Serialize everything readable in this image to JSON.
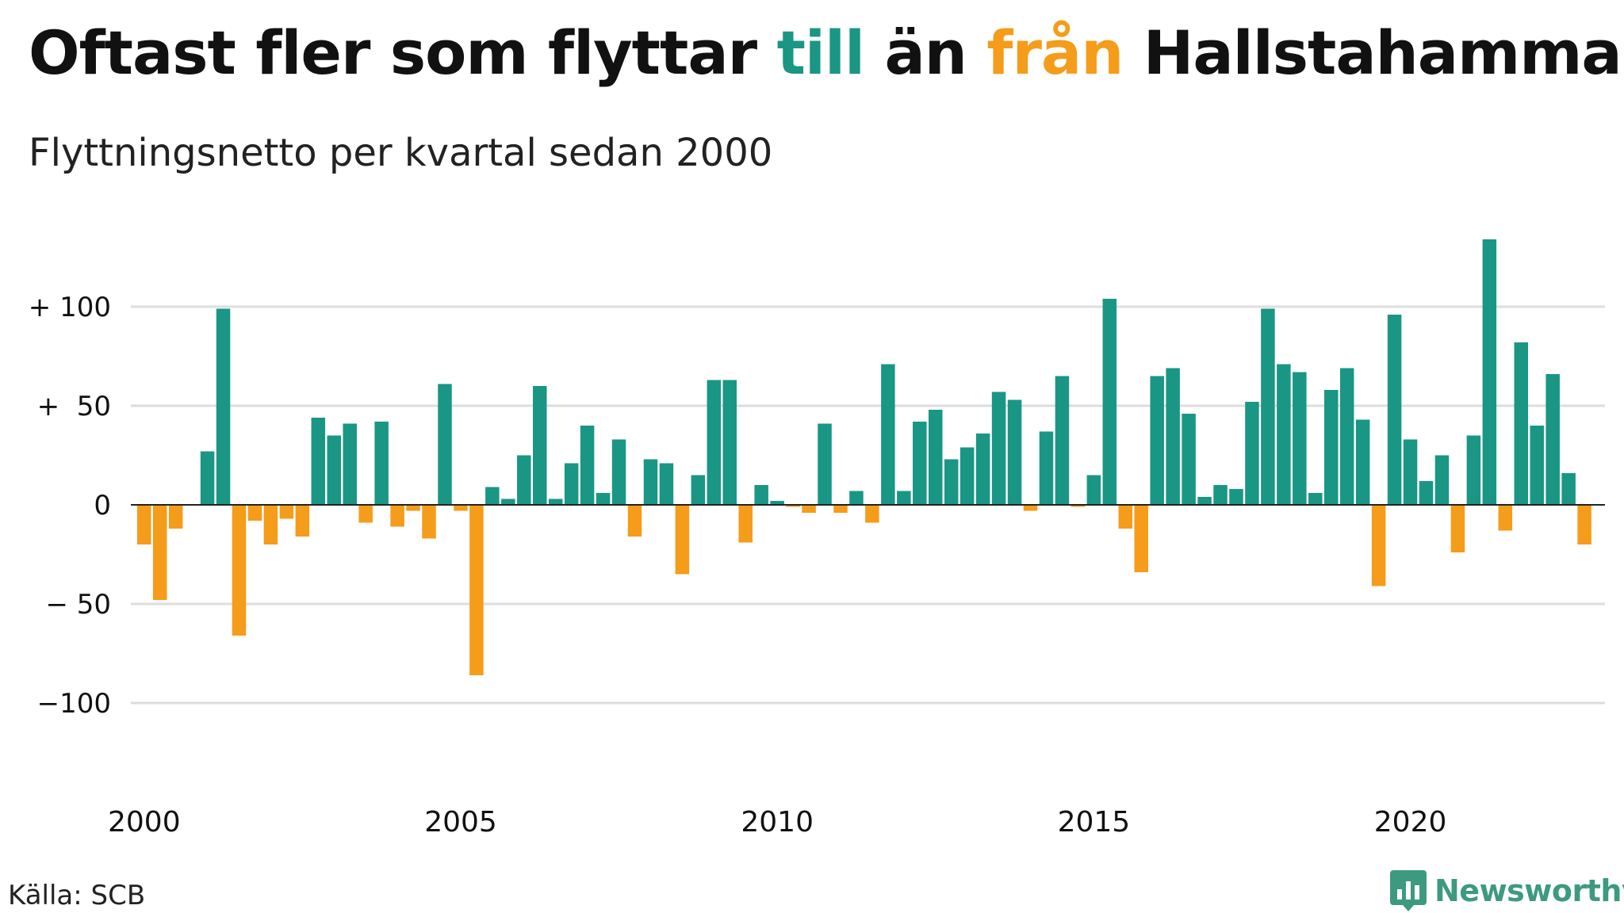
{
  "title": {
    "part1": "Oftast fler som flyttar",
    "word_till": "till",
    "part2": "än",
    "word_fran": "från",
    "part3": "Hallstahammar"
  },
  "subtitle": "Flyttningsnetto per kvartal sedan 2000",
  "source": "Källa: SCB",
  "logo": {
    "text": "Newsworthy",
    "icon": "bar-chart-badge-icon"
  },
  "colors": {
    "positive": "#1a9685",
    "negative": "#f59c1a",
    "grid": "#dddddd",
    "zero_line": "#222222",
    "text": "#111111"
  },
  "chart_data": {
    "type": "bar",
    "xlabel": "",
    "ylabel": "",
    "ylim": [
      -150,
      135
    ],
    "grid": true,
    "y_ticks": [
      {
        "value": 100,
        "label": "+ 100"
      },
      {
        "value": 50,
        "label": "+  50"
      },
      {
        "value": 0,
        "label": "0"
      },
      {
        "value": -50,
        "label": "− 50"
      },
      {
        "value": -100,
        "label": "−100"
      }
    ],
    "x_ticks": [
      {
        "year": 2000,
        "label": "2000"
      },
      {
        "year": 2005,
        "label": "2005"
      },
      {
        "year": 2010,
        "label": "2010"
      },
      {
        "year": 2015,
        "label": "2015"
      },
      {
        "year": 2020,
        "label": "2020"
      }
    ],
    "start_year": 2000,
    "quarters_per_year": 4,
    "values": [
      -20,
      -48,
      -12,
      0,
      27,
      99,
      -66,
      -8,
      -20,
      -7,
      -16,
      44,
      35,
      41,
      -9,
      42,
      -11,
      -3,
      -17,
      61,
      -3,
      -86,
      9,
      3,
      25,
      60,
      3,
      21,
      40,
      6,
      33,
      -16,
      23,
      21,
      -35,
      15,
      63,
      63,
      -19,
      10,
      2,
      -1,
      -4,
      41,
      -4,
      7,
      -9,
      71,
      7,
      42,
      48,
      23,
      29,
      36,
      57,
      53,
      -3,
      37,
      65,
      -1,
      15,
      104,
      -12,
      -34,
      65,
      69,
      46,
      4,
      10,
      8,
      52,
      99,
      71,
      67,
      6,
      58,
      69,
      43,
      -41,
      96,
      33,
      12,
      25,
      -24,
      35,
      134,
      -13,
      82,
      40,
      66,
      16,
      -20
    ]
  }
}
